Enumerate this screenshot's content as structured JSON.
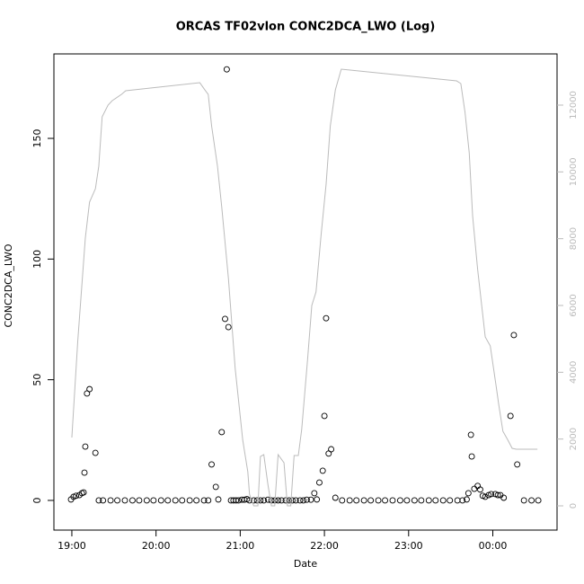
{
  "chart_data": {
    "type": "scatter",
    "title": "ORCAS TF02vlon CONC2DCA_LWO (Log)",
    "x_label": "Date",
    "y_label": "CONC2DCA_LWO",
    "xlim": [
      18.787,
      24.763
    ],
    "xticks": [
      {
        "value": 19,
        "label": "19:00"
      },
      {
        "value": 20,
        "label": "20:00"
      },
      {
        "value": 21,
        "label": "21:00"
      },
      {
        "value": 22,
        "label": "22:00"
      },
      {
        "value": 23,
        "label": "23:00"
      },
      {
        "value": 24,
        "label": "00:00"
      }
    ],
    "ylim": [
      -12.3,
      185
    ],
    "yticks": [
      0,
      50,
      100,
      150
    ],
    "y2lim": [
      -726,
      13533
    ],
    "y2ticks": [
      0,
      2000,
      4000,
      6000,
      8000,
      10000,
      12000
    ],
    "y2_color": "#bbbbbb",
    "series": [
      {
        "type": "scatter",
        "color": "#000000",
        "x": [
          18.99,
          19.02,
          19.05,
          19.09,
          19.12,
          19.14,
          19.15,
          19.16,
          19.18,
          19.21,
          19.28,
          19.32,
          19.37,
          19.46,
          19.54,
          19.63,
          19.72,
          19.8,
          19.89,
          19.97,
          20.06,
          20.14,
          20.23,
          20.31,
          20.4,
          20.48,
          20.57,
          20.62,
          20.66,
          20.71,
          20.74,
          20.78,
          20.82,
          20.84,
          20.86,
          20.89,
          20.92,
          20.95,
          20.98,
          21.02,
          21.05,
          21.08,
          21.11,
          21.16,
          21.2,
          21.24,
          21.28,
          21.33,
          21.37,
          21.41,
          21.45,
          21.49,
          21.54,
          21.58,
          21.62,
          21.66,
          21.71,
          21.75,
          21.79,
          21.84,
          21.88,
          21.91,
          21.94,
          21.98,
          22.0,
          22.02,
          22.05,
          22.08,
          22.13,
          22.21,
          22.3,
          22.38,
          22.47,
          22.55,
          22.64,
          22.72,
          22.81,
          22.9,
          22.98,
          23.07,
          23.15,
          23.24,
          23.32,
          23.41,
          23.49,
          23.58,
          23.64,
          23.69,
          23.71,
          23.74,
          23.75,
          23.78,
          23.82,
          23.85,
          23.88,
          23.91,
          23.95,
          23.98,
          24.03,
          24.06,
          24.09,
          24.13,
          24.21,
          24.25,
          24.29,
          24.37,
          24.46,
          24.54
        ],
        "values": [
          0.4,
          1.5,
          1.9,
          2.2,
          3,
          3.3,
          11.5,
          22.3,
          44.3,
          46.1,
          19.7,
          0,
          0,
          0,
          0,
          0,
          0,
          0,
          0,
          0,
          0,
          0,
          0,
          0,
          0,
          0,
          0,
          0,
          14.9,
          5.6,
          0.4,
          28.3,
          75.2,
          178.6,
          71.8,
          0,
          0,
          0,
          0,
          0.3,
          0.3,
          0.5,
          0,
          0,
          0,
          0,
          0,
          0.3,
          0,
          0,
          0,
          0,
          0,
          0,
          0,
          0,
          0,
          0,
          0.3,
          0.3,
          3,
          0.4,
          7.4,
          12.3,
          35,
          75.5,
          19.4,
          21.2,
          1.1,
          0,
          0,
          0,
          0,
          0,
          0,
          0,
          0,
          0,
          0,
          0,
          0,
          0,
          0,
          0,
          0,
          0,
          0,
          0.4,
          3,
          27.2,
          18.2,
          4.8,
          6,
          4.5,
          1.9,
          1.5,
          2.2,
          2.6,
          2.6,
          2.2,
          2.2,
          1.1,
          35,
          68.5,
          14.9,
          0,
          0,
          0
        ]
      },
      {
        "type": "line",
        "axis": "y2",
        "color": "#bbbbbb",
        "x": [
          19.0,
          19.07,
          19.16,
          19.21,
          19.28,
          19.32,
          19.36,
          19.43,
          19.48,
          19.59,
          19.64,
          20.52,
          20.58,
          20.62,
          20.66,
          20.73,
          20.78,
          20.86,
          20.94,
          21.03,
          21.09,
          21.11,
          21.16,
          21.21,
          21.24,
          21.28,
          21.33,
          21.37,
          21.41,
          21.45,
          21.52,
          21.56,
          21.6,
          21.64,
          21.69,
          21.73,
          21.8,
          21.85,
          21.9,
          21.96,
          22.02,
          22.07,
          22.13,
          22.2,
          23.57,
          23.62,
          23.67,
          23.72,
          23.76,
          23.82,
          23.91,
          23.97,
          24.04,
          24.07,
          24.12,
          24.18,
          24.23,
          24.28,
          24.53
        ],
        "values": [
          2045,
          4923,
          8017,
          9093,
          9497,
          10170,
          11650,
          12000,
          12134,
          12322,
          12430,
          12671,
          12456,
          12322,
          11380,
          10170,
          8959,
          6807,
          4116,
          1964,
          1022,
          350,
          0,
          0,
          1480,
          1533,
          619,
          0,
          0,
          1533,
          1291,
          0,
          0,
          1507,
          1507,
          2287,
          4385,
          6000,
          6403,
          8098,
          9631,
          11380,
          12456,
          13075,
          12725,
          12645,
          11784,
          10573,
          8690,
          7076,
          5058,
          4789,
          3578,
          3040,
          2233,
          1964,
          1722,
          1695,
          1695
        ]
      }
    ]
  }
}
